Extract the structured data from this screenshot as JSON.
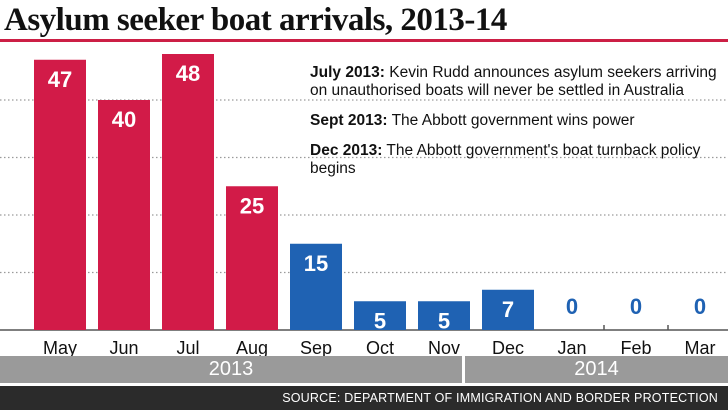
{
  "title": "Asylum seeker boat arrivals, 2013-14",
  "colors": {
    "before": "#d21b48",
    "after": "#1f62b3",
    "zero": "#1f62b3",
    "grid": "#9a9a9a",
    "accent": "#cc1f45"
  },
  "notes": [
    {
      "date": "July 2013:",
      "text": " Kevin Rudd announces asylum seekers arriving on unauthorised boats will never be settled in Australia"
    },
    {
      "date": "Sept 2013:",
      "text": " The Abbott government wins power"
    },
    {
      "date": "Dec 2013:",
      "text": " The Abbott government's boat turnback policy begins"
    }
  ],
  "years": {
    "y2013": "2013",
    "y2014": "2014"
  },
  "source": "SOURCE: DEPARTMENT OF IMMIGRATION AND BORDER PROTECTION",
  "chart_data": {
    "type": "bar",
    "title": "Asylum seeker boat arrivals, 2013-14",
    "categories": [
      "May",
      "Jun",
      "Jul",
      "Aug",
      "Sep",
      "Oct",
      "Nov",
      "Dec",
      "Jan",
      "Feb",
      "Mar"
    ],
    "values": [
      47,
      40,
      48,
      25,
      15,
      5,
      5,
      7,
      0,
      0,
      0
    ],
    "bar_colors": [
      "#d21b48",
      "#d21b48",
      "#d21b48",
      "#d21b48",
      "#1f62b3",
      "#1f62b3",
      "#1f62b3",
      "#1f62b3",
      "#1f62b3",
      "#1f62b3",
      "#1f62b3"
    ],
    "groups": [
      {
        "label": "2013",
        "categories": [
          "May",
          "Jun",
          "Jul",
          "Aug",
          "Sep",
          "Oct",
          "Nov",
          "Dec"
        ]
      },
      {
        "label": "2014",
        "categories": [
          "Jan",
          "Feb",
          "Mar"
        ]
      }
    ],
    "ylim": [
      0,
      50
    ],
    "gridlines": [
      10,
      20,
      30,
      40
    ],
    "grid": true,
    "xlabel": "",
    "ylabel": ""
  }
}
